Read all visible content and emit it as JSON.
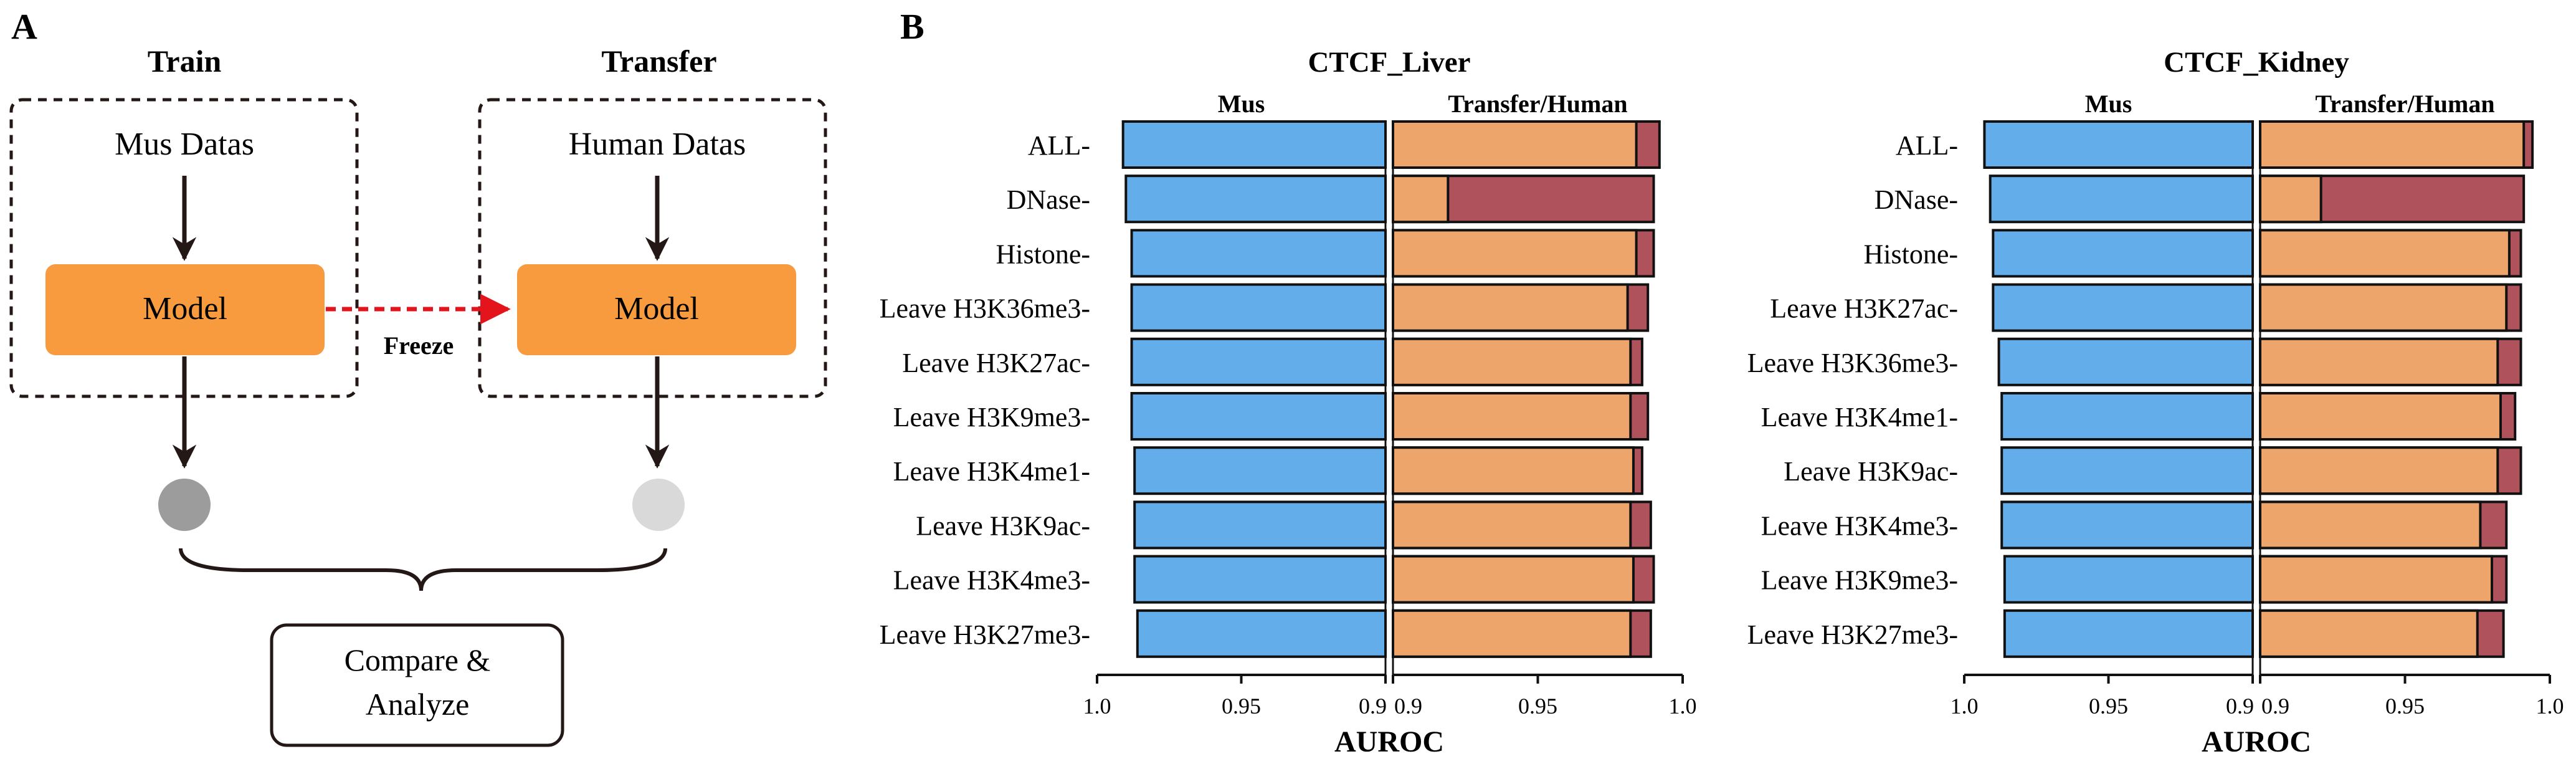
{
  "panel_a": {
    "label": "A",
    "train_title": "Train",
    "transfer_title": "Transfer",
    "train_data": "Mus Datas",
    "transfer_data": "Human Datas",
    "model_label": "Model",
    "freeze_label": "Freeze",
    "compare_line1": "Compare &",
    "compare_line2": "Analyze"
  },
  "panel_b": {
    "label": "B"
  },
  "colors": {
    "model_fill": "#f89a3e",
    "mus_bar": "#63aeea",
    "transfer_bar": "#eea56b",
    "human_bar": "#b0525b",
    "freeze_arrow": "#e3141b",
    "train_output": "#9c9c9c",
    "transfer_output": "#d9d9d9"
  },
  "chart_data": [
    {
      "type": "bar",
      "orientation": "horizontal",
      "title": "CTCF_Liver",
      "xlabel": "AUROC",
      "left_header": "Mus",
      "right_header": "Transfer/Human",
      "categories": [
        "ALL-",
        "DNase-",
        "Histone-",
        "Leave H3K36me3-",
        "Leave H3K27ac-",
        "Leave H3K9me3-",
        "Leave H3K4me1-",
        "Leave H3K9ac-",
        "Leave H3K4me3-",
        "Leave H3K27me3-"
      ],
      "left_axis": {
        "range": [
          1.0,
          0.9
        ],
        "ticks": [
          "1.0",
          "0.95",
          "0.9"
        ]
      },
      "right_axis": {
        "range": [
          0.9,
          1.0
        ],
        "ticks": [
          "0.9",
          "0.95",
          "1.0"
        ]
      },
      "series": [
        {
          "name": "Mus",
          "panel": "left",
          "values": [
            0.991,
            0.99,
            0.988,
            0.988,
            0.988,
            0.988,
            0.987,
            0.987,
            0.987,
            0.986
          ]
        },
        {
          "name": "Transfer",
          "panel": "right",
          "values": [
            0.984,
            0.919,
            0.984,
            0.981,
            0.982,
            0.982,
            0.983,
            0.982,
            0.983,
            0.982
          ]
        },
        {
          "name": "Human",
          "panel": "right",
          "values": [
            0.992,
            0.99,
            0.99,
            0.988,
            0.986,
            0.988,
            0.986,
            0.989,
            0.99,
            0.989
          ]
        }
      ]
    },
    {
      "type": "bar",
      "orientation": "horizontal",
      "title": "CTCF_Kidney",
      "xlabel": "AUROC",
      "left_header": "Mus",
      "right_header": "Transfer/Human",
      "categories": [
        "ALL-",
        "DNase-",
        "Histone-",
        "Leave H3K27ac-",
        "Leave H3K36me3-",
        "Leave H3K4me1-",
        "Leave H3K9ac-",
        "Leave H3K4me3-",
        "Leave H3K9me3-",
        "Leave H3K27me3-"
      ],
      "left_axis": {
        "range": [
          1.0,
          0.9
        ],
        "ticks": [
          "1.0",
          "0.95",
          "0.9"
        ]
      },
      "right_axis": {
        "range": [
          0.9,
          1.0
        ],
        "ticks": [
          "0.9",
          "0.95",
          "1.0"
        ]
      },
      "series": [
        {
          "name": "Mus",
          "panel": "left",
          "values": [
            0.993,
            0.991,
            0.99,
            0.99,
            0.988,
            0.987,
            0.987,
            0.987,
            0.986,
            0.986
          ]
        },
        {
          "name": "Transfer",
          "panel": "right",
          "values": [
            0.991,
            0.921,
            0.986,
            0.985,
            0.982,
            0.983,
            0.982,
            0.976,
            0.98,
            0.975
          ]
        },
        {
          "name": "Human",
          "panel": "right",
          "values": [
            0.994,
            0.991,
            0.99,
            0.99,
            0.99,
            0.988,
            0.99,
            0.985,
            0.985,
            0.984
          ]
        }
      ]
    }
  ]
}
